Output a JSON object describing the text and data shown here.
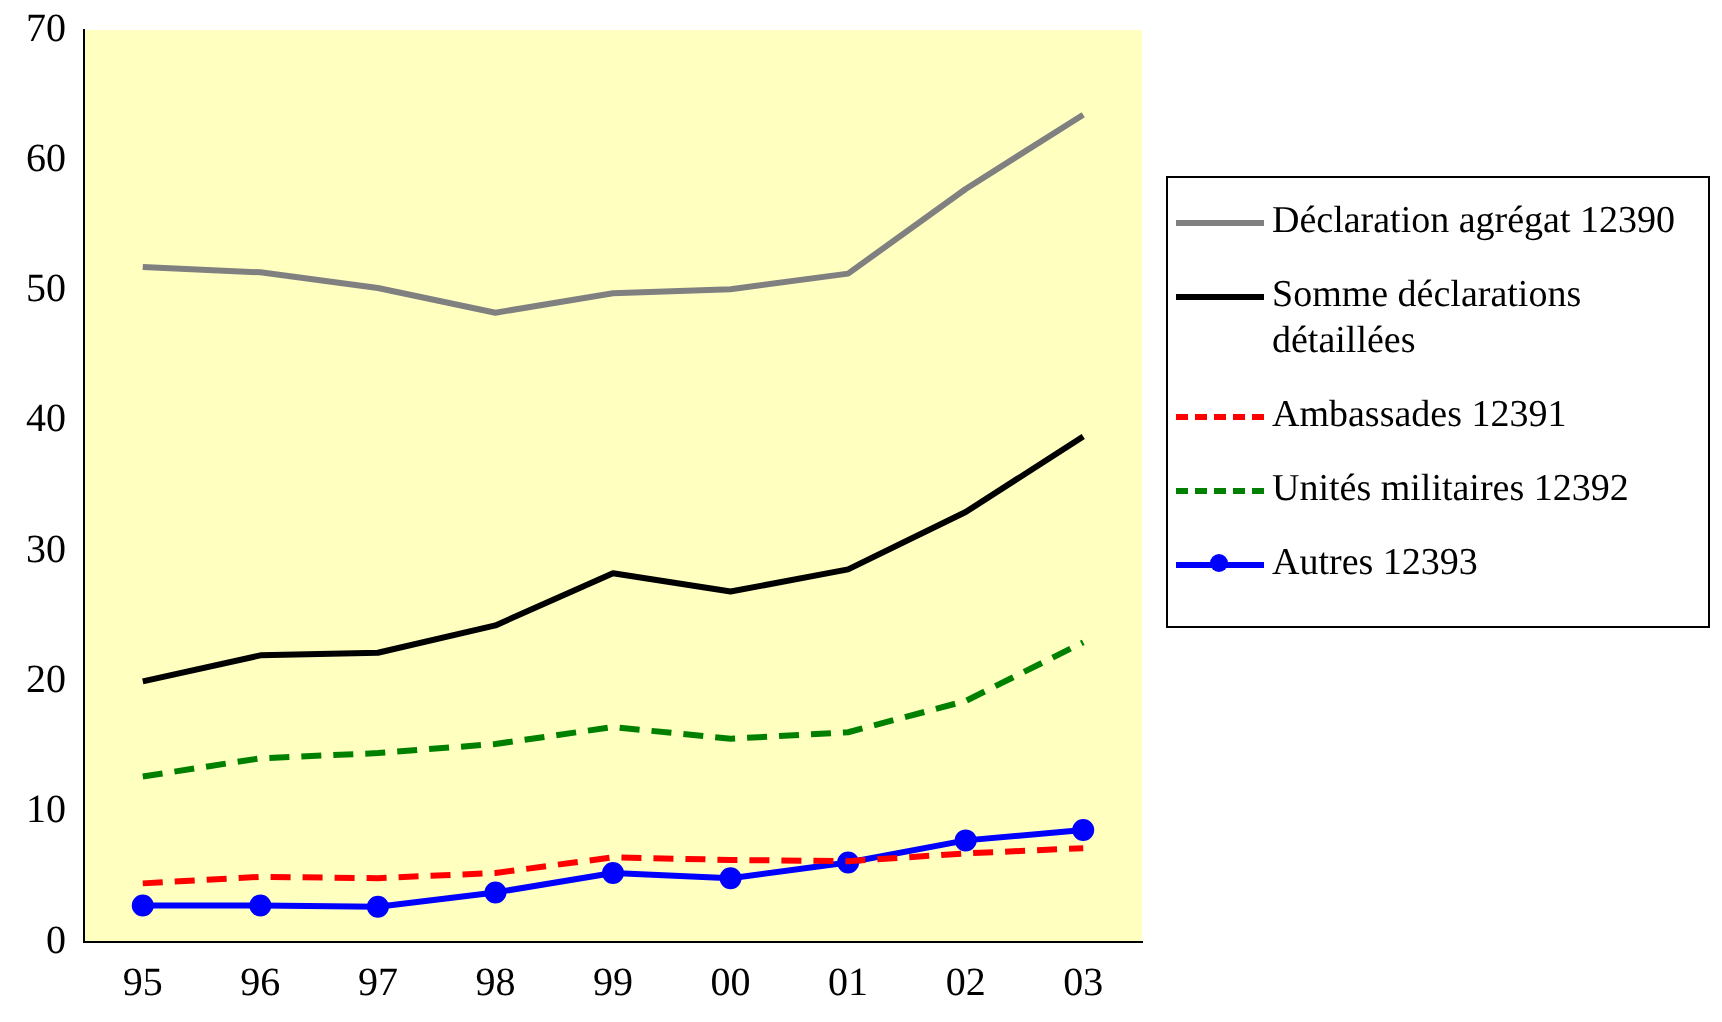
{
  "chart_data": {
    "type": "line",
    "categories": [
      "95",
      "96",
      "97",
      "98",
      "99",
      "00",
      "01",
      "02",
      "03"
    ],
    "ylim": [
      0,
      70
    ],
    "yticks": [
      0,
      10,
      20,
      30,
      40,
      50,
      60,
      70
    ],
    "grid": false,
    "legend": "right",
    "marker": "none",
    "series": [
      {
        "name": "Déclaration agrégat 12390",
        "color": "#808080",
        "line_style": "solid",
        "values": [
          51.8,
          51.4,
          50.2,
          48.3,
          49.8,
          50.1,
          51.3,
          57.8,
          63.5
        ]
      },
      {
        "name": "Somme déclarations détaillées",
        "color": "#000000",
        "line_style": "solid",
        "values": [
          20.0,
          22.0,
          22.2,
          24.3,
          28.3,
          26.9,
          28.6,
          33.0,
          38.8
        ]
      },
      {
        "name": "Ambassades 12391",
        "color": "#ff0000",
        "line_style": "dashed",
        "values": [
          4.5,
          5.0,
          4.9,
          5.3,
          6.5,
          6.3,
          6.2,
          6.8,
          7.2
        ]
      },
      {
        "name": "Unités militaires 12392",
        "color": "#008000",
        "line_style": "dashed",
        "values": [
          12.7,
          14.1,
          14.5,
          15.2,
          16.5,
          15.6,
          16.1,
          18.5,
          23.0
        ]
      },
      {
        "name": "Autres 12393",
        "color": "#0000ff",
        "line_style": "solid",
        "marker": "circle",
        "values": [
          2.8,
          2.8,
          2.7,
          3.8,
          5.3,
          4.9,
          6.1,
          7.8,
          8.6
        ]
      }
    ]
  }
}
